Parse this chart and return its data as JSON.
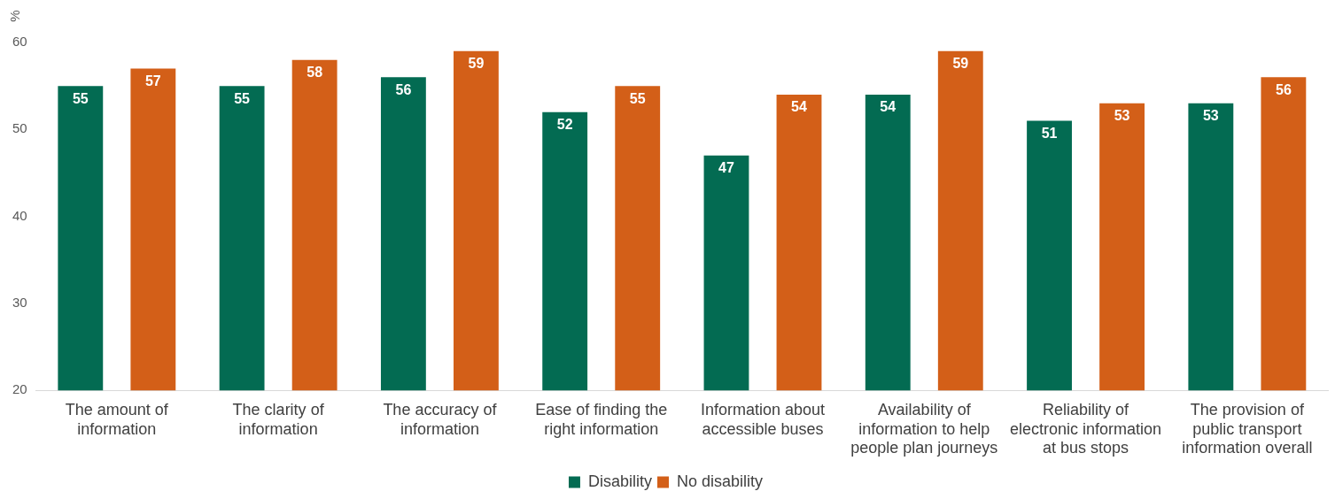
{
  "chart_data": {
    "type": "bar",
    "ylabel": "%",
    "categories": [
      "The amount of information",
      "The clarity of information",
      "The accuracy of information",
      "Ease of finding the right information",
      "Information about accessible buses",
      "Availability of information to help people plan journeys",
      "Reliability of electronic information at bus stops",
      "The provision of public transport information overall"
    ],
    "series": [
      {
        "name": "Disability",
        "color": "#036b52",
        "values": [
          55,
          55,
          56,
          52,
          47,
          54,
          51,
          53
        ]
      },
      {
        "name": "No disability",
        "color": "#d35f18",
        "values": [
          57,
          58,
          59,
          55,
          54,
          59,
          53,
          56
        ]
      }
    ],
    "ylim": [
      20,
      60
    ],
    "yticks": [
      20,
      30,
      40,
      50,
      60
    ],
    "grid": false,
    "legend": "bottom",
    "data_labels": true
  }
}
